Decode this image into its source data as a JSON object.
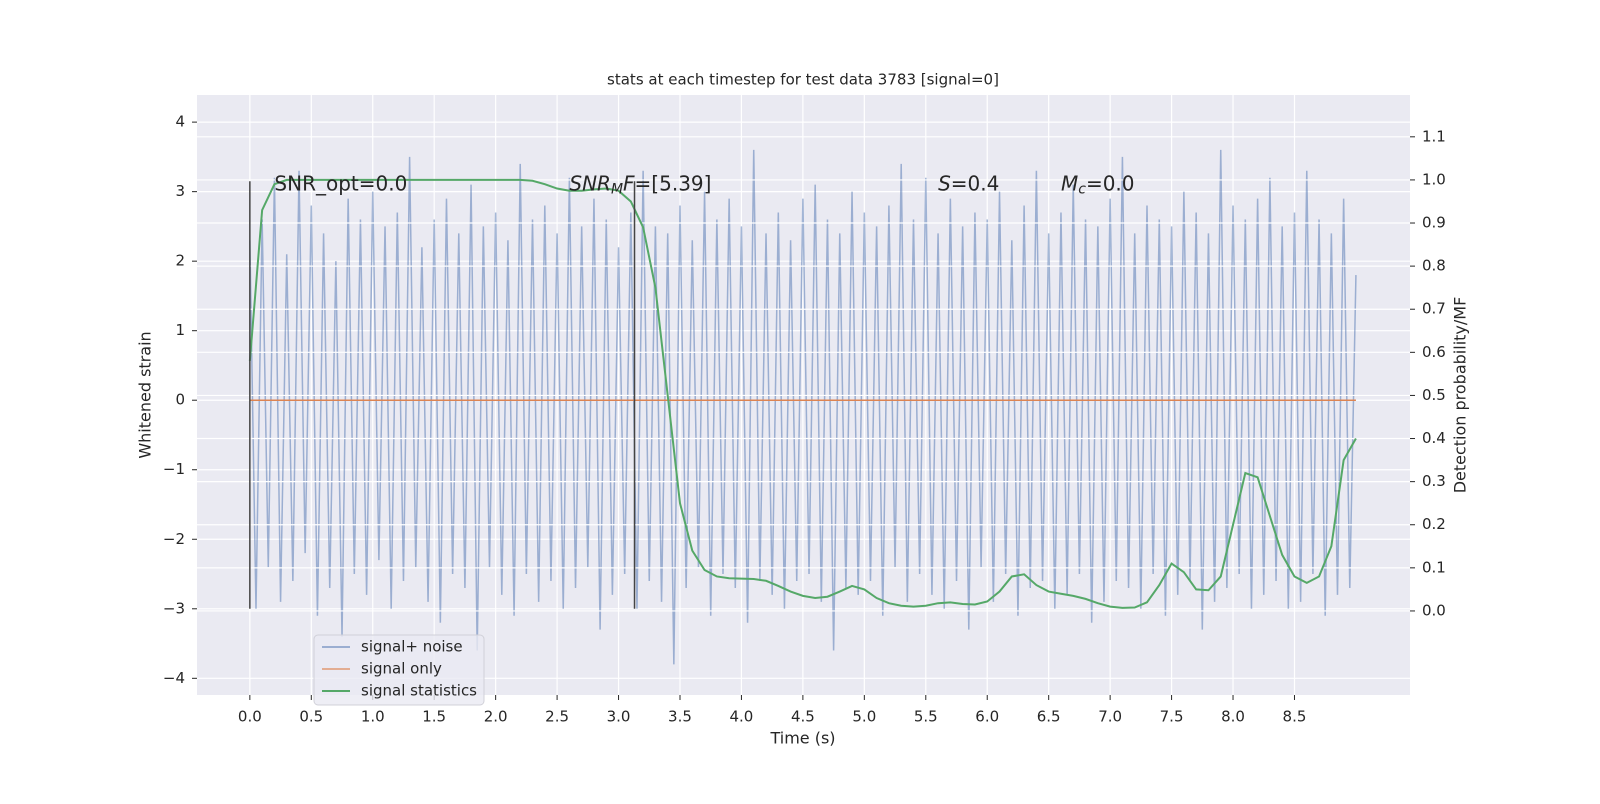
{
  "chart_data": {
    "type": "line",
    "title": "stats at each timestep for test data 3783 [signal=0]",
    "xlabel": "Time (s)",
    "ylabel": "Whitened strain",
    "y2label": "Detection probability/MF",
    "xlim": [
      -0.43,
      9.44
    ],
    "ylim": [
      -4.24,
      4.39
    ],
    "y2lim": [
      -0.195,
      1.197
    ],
    "xticks": [
      {
        "value": 0,
        "label": "0.0"
      },
      {
        "value": 0.5,
        "label": "0.5"
      },
      {
        "value": 1,
        "label": "1.0"
      },
      {
        "value": 1.5,
        "label": "1.5"
      },
      {
        "value": 2,
        "label": "2.0"
      },
      {
        "value": 2.5,
        "label": "2.5"
      },
      {
        "value": 3,
        "label": "3.0"
      },
      {
        "value": 3.5,
        "label": "3.5"
      },
      {
        "value": 4,
        "label": "4.0"
      },
      {
        "value": 4.5,
        "label": "4.5"
      },
      {
        "value": 5,
        "label": "5.0"
      },
      {
        "value": 5.5,
        "label": "5.5"
      },
      {
        "value": 6,
        "label": "6.0"
      },
      {
        "value": 6.5,
        "label": "6.5"
      },
      {
        "value": 7,
        "label": "7.0"
      },
      {
        "value": 7.5,
        "label": "7.5"
      },
      {
        "value": 8,
        "label": "8.0"
      },
      {
        "value": 8.5,
        "label": "8.5"
      }
    ],
    "yticks": [
      {
        "value": -4,
        "label": "−4"
      },
      {
        "value": -3,
        "label": "−3"
      },
      {
        "value": -2,
        "label": "−2"
      },
      {
        "value": -1,
        "label": "−1"
      },
      0,
      1,
      2,
      3,
      4
    ],
    "y2ticks": [
      {
        "value": 0,
        "label": "0.0"
      },
      {
        "value": 0.1,
        "label": "0.1"
      },
      {
        "value": 0.2,
        "label": "0.2"
      },
      {
        "value": 0.3,
        "label": "0.3"
      },
      {
        "value": 0.4,
        "label": "0.4"
      },
      {
        "value": 0.5,
        "label": "0.5"
      },
      {
        "value": 0.6,
        "label": "0.6"
      },
      {
        "value": 0.7,
        "label": "0.7"
      },
      {
        "value": 0.8,
        "label": "0.8"
      },
      {
        "value": 0.9,
        "label": "0.9"
      },
      {
        "value": 1,
        "label": "1.0"
      },
      {
        "value": 1.1,
        "label": "1.1"
      }
    ],
    "grid": true,
    "legend": "lower left",
    "series": [
      {
        "name": "signal+ noise",
        "color": "#4c72b0",
        "alpha": 0.5,
        "x": [
          0,
          0.05,
          0.1,
          0.15,
          0.2,
          0.25,
          0.3,
          0.35,
          0.4,
          0.45,
          0.5,
          0.55,
          0.6,
          0.65,
          0.7,
          0.75,
          0.8,
          0.85,
          0.9,
          0.95,
          1,
          1.05,
          1.1,
          1.15,
          1.2,
          1.25,
          1.3,
          1.35,
          1.4,
          1.45,
          1.5,
          1.55,
          1.6,
          1.65,
          1.7,
          1.75,
          1.8,
          1.85,
          1.9,
          1.95,
          2,
          2.05,
          2.1,
          2.15,
          2.2,
          2.25,
          2.3,
          2.35,
          2.4,
          2.45,
          2.5,
          2.55,
          2.6,
          2.65,
          2.7,
          2.75,
          2.8,
          2.85,
          2.9,
          2.95,
          3,
          3.05,
          3.1,
          3.15,
          3.2,
          3.25,
          3.3,
          3.35,
          3.4,
          3.45,
          3.5,
          3.55,
          3.6,
          3.65,
          3.7,
          3.75,
          3.8,
          3.85,
          3.9,
          3.95,
          4,
          4.05,
          4.1,
          4.15,
          4.2,
          4.25,
          4.3,
          4.35,
          4.4,
          4.45,
          4.5,
          4.55,
          4.6,
          4.65,
          4.7,
          4.75,
          4.8,
          4.85,
          4.9,
          4.95,
          5,
          5.05,
          5.1,
          5.15,
          5.2,
          5.25,
          5.3,
          5.35,
          5.4,
          5.45,
          5.5,
          5.55,
          5.6,
          5.65,
          5.7,
          5.75,
          5.8,
          5.85,
          5.9,
          5.95,
          6,
          6.05,
          6.1,
          6.15,
          6.2,
          6.25,
          6.3,
          6.35,
          6.4,
          6.45,
          6.5,
          6.55,
          6.6,
          6.65,
          6.7,
          6.75,
          6.8,
          6.85,
          6.9,
          6.95,
          7,
          7.05,
          7.1,
          7.15,
          7.2,
          7.25,
          7.3,
          7.35,
          7.4,
          7.45,
          7.5,
          7.55,
          7.6,
          7.65,
          7.7,
          7.75,
          7.8,
          7.85,
          7.9,
          7.95,
          8,
          8.05,
          8.1,
          8.15,
          8.2,
          8.25,
          8.3,
          8.35,
          8.4,
          8.45,
          8.5,
          8.55,
          8.6,
          8.65,
          8.7,
          8.75,
          8.8,
          8.85,
          8.9,
          8.95,
          9
        ],
        "values": [
          2.3,
          -3.0,
          2.6,
          -2.4,
          3.2,
          -2.9,
          2.1,
          -2.6,
          3.3,
          -2.2,
          2.8,
          -3.1,
          2.4,
          -2.7,
          2.0,
          -3.4,
          2.9,
          -2.5,
          2.6,
          -2.8,
          3.0,
          -2.3,
          2.5,
          -3.0,
          2.7,
          -2.6,
          3.5,
          -2.4,
          2.2,
          -2.9,
          2.6,
          -3.2,
          2.9,
          -2.5,
          2.4,
          -2.7,
          3.1,
          -3.6,
          2.5,
          -2.4,
          2.7,
          -2.8,
          2.3,
          -3.1,
          3.4,
          -2.5,
          2.6,
          -2.9,
          2.8,
          -2.6,
          2.4,
          -3.0,
          3.2,
          -2.7,
          2.5,
          -2.4,
          2.9,
          -3.3,
          2.6,
          -2.8,
          2.2,
          -2.5,
          2.7,
          -3.0,
          3.3,
          -2.6,
          2.5,
          -2.9,
          2.4,
          -3.8,
          2.8,
          -2.7,
          2.3,
          -2.4,
          3.0,
          -3.1,
          2.6,
          -2.5,
          2.9,
          -2.7,
          2.5,
          -3.2,
          3.6,
          -2.6,
          2.4,
          -2.8,
          2.7,
          -3.0,
          2.3,
          -2.6,
          2.9,
          -2.5,
          3.1,
          -2.9,
          2.6,
          -3.6,
          2.4,
          -2.7,
          3.0,
          -2.8,
          2.7,
          -2.6,
          2.5,
          -3.1,
          2.8,
          -2.4,
          3.4,
          -2.9,
          2.6,
          -2.5,
          3.2,
          -2.8,
          2.4,
          -3.0,
          2.9,
          -2.6,
          2.5,
          -3.3,
          2.7,
          -2.4,
          2.6,
          -2.9,
          3.0,
          -2.5,
          2.3,
          -3.1,
          2.8,
          -2.7,
          3.3,
          -2.6,
          2.4,
          -3.0,
          2.7,
          -2.8,
          3.1,
          -2.5,
          2.6,
          -3.2,
          2.5,
          -2.9,
          2.9,
          -2.6,
          3.5,
          -2.7,
          2.4,
          -3.0,
          2.8,
          -2.5,
          2.6,
          -3.1,
          2.5,
          -2.8,
          3.0,
          -2.6,
          2.7,
          -3.3,
          2.4,
          -2.9,
          3.6,
          -2.7,
          2.8,
          -2.5,
          2.6,
          -3.0,
          2.9,
          -2.8,
          3.2,
          -2.6,
          2.5,
          -3.0,
          2.7,
          -2.9,
          3.3,
          -2.5,
          2.6,
          -3.1,
          2.4,
          -2.8,
          2.9,
          -2.7,
          1.8
        ]
      },
      {
        "name": "signal only",
        "color": "#dd8452",
        "alpha": 1,
        "x": [
          0,
          9
        ],
        "values": [
          0,
          0
        ]
      },
      {
        "name": "signal statistics",
        "color": "#55a868",
        "alpha": 1,
        "axis": "y2",
        "x": [
          0,
          0.1,
          0.2,
          0.3,
          0.4,
          0.5,
          0.6,
          0.7,
          0.8,
          0.9,
          1,
          1.1,
          1.2,
          1.3,
          1.4,
          1.5,
          1.6,
          1.7,
          1.8,
          1.9,
          2,
          2.1,
          2.2,
          2.3,
          2.4,
          2.5,
          2.6,
          2.7,
          2.8,
          2.9,
          3,
          3.1,
          3.2,
          3.3,
          3.4,
          3.5,
          3.6,
          3.7,
          3.8,
          3.9,
          4,
          4.1,
          4.2,
          4.3,
          4.4,
          4.5,
          4.6,
          4.7,
          4.8,
          4.9,
          5,
          5.1,
          5.2,
          5.3,
          5.4,
          5.5,
          5.6,
          5.7,
          5.8,
          5.9,
          6,
          6.1,
          6.2,
          6.3,
          6.4,
          6.5,
          6.6,
          6.7,
          6.8,
          6.9,
          7,
          7.1,
          7.2,
          7.3,
          7.4,
          7.5,
          7.6,
          7.7,
          7.8,
          7.9,
          8,
          8.1,
          8.2,
          8.3,
          8.4,
          8.5,
          8.6,
          8.7,
          8.8,
          8.9,
          9
        ],
        "values": [
          0.58,
          0.93,
          0.99,
          1,
          1,
          1,
          1,
          1,
          1,
          1,
          1,
          1,
          1,
          1,
          1,
          1,
          1,
          1,
          1,
          1,
          1,
          1,
          1,
          0.998,
          0.99,
          0.98,
          0.975,
          0.975,
          0.978,
          0.98,
          0.975,
          0.95,
          0.89,
          0.75,
          0.5,
          0.25,
          0.14,
          0.095,
          0.08,
          0.076,
          0.075,
          0.074,
          0.07,
          0.058,
          0.045,
          0.035,
          0.03,
          0.033,
          0.045,
          0.058,
          0.05,
          0.03,
          0.018,
          0.012,
          0.01,
          0.012,
          0.018,
          0.02,
          0.016,
          0.015,
          0.022,
          0.045,
          0.08,
          0.085,
          0.06,
          0.045,
          0.04,
          0.035,
          0.028,
          0.018,
          0.01,
          0.007,
          0.008,
          0.02,
          0.06,
          0.11,
          0.09,
          0.05,
          0.048,
          0.08,
          0.2,
          0.32,
          0.31,
          0.22,
          0.13,
          0.08,
          0.065,
          0.08,
          0.15,
          0.35,
          0.4
        ]
      }
    ],
    "vlines": {
      "x": [
        0,
        3.13
      ],
      "ymin": -3.0,
      "ymax": 3.15,
      "color": "#444444"
    },
    "annotations": [
      {
        "x": 0.2,
        "y": 3.1,
        "parts": [
          {
            "text": "SNR_opt=0.0"
          }
        ]
      },
      {
        "x": 2.6,
        "y": 3.1,
        "parts": [
          {
            "text": "SNR",
            "italic": true
          },
          {
            "text": "M",
            "italic": true,
            "sub": true
          },
          {
            "text": "F",
            "italic": true
          },
          {
            "text": "=[5.39]"
          }
        ]
      },
      {
        "x": 5.6,
        "y": 3.1,
        "parts": [
          {
            "text": "S",
            "italic": true
          },
          {
            "text": "=0.4"
          }
        ]
      },
      {
        "x": 6.6,
        "y": 3.1,
        "parts": [
          {
            "text": "M",
            "italic": true
          },
          {
            "text": "c",
            "italic": true,
            "sub": true
          },
          {
            "text": "=0.0"
          }
        ]
      }
    ]
  }
}
